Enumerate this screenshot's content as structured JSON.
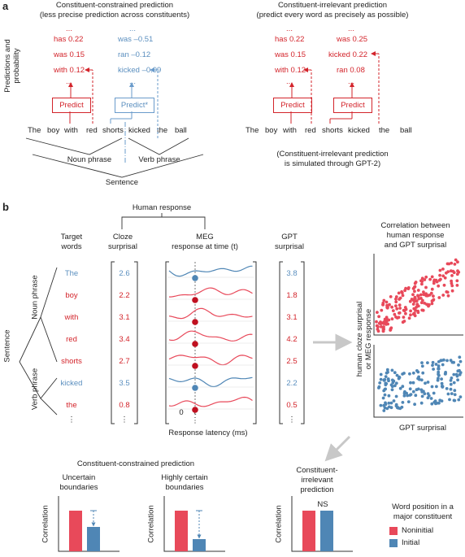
{
  "panel_a": {
    "label": "a",
    "side_label_1": "Predictions and",
    "side_label_2": "probability",
    "left_title_1": "Constituent-constrained prediction",
    "left_title_2": "(less precise prediction across constituents)",
    "right_title_1": "Constituent-irrelevant prediction",
    "right_title_2": "(predict every word as precisely as possible)",
    "ellipsis": "...",
    "left_red": [
      "has 0.22",
      "was 0.15",
      "with 0.12"
    ],
    "left_blue": [
      "was –0.51",
      "ran –0.12",
      "kicked –0.09"
    ],
    "right_col1": [
      "has 0.22",
      "was 0.15",
      "with 0.12"
    ],
    "right_col2": [
      "was 0.25",
      "kicked 0.22",
      "ran 0.08"
    ],
    "predict": "Predict",
    "predict_star": "Predict*",
    "sentence_words": [
      "The",
      "boy",
      "with",
      "red",
      "shorts",
      "kicked",
      "the",
      "ball"
    ],
    "noun_phrase": "Noun phrase",
    "verb_phrase": "Verb phrase",
    "sentence": "Sentence",
    "gpt_note_1": "(Constituent-irrelevant prediction",
    "gpt_note_2": "is simulated through GPT-2)"
  },
  "panel_b": {
    "label": "b",
    "human_response": "Human response",
    "target_words_1": "Target",
    "target_words_2": "words",
    "cloze_1": "Cloze",
    "cloze_2": "surprisal",
    "meg_1": "MEG",
    "meg_2": "response at time (t)",
    "gpt_1": "GPT",
    "gpt_2": "surprisal",
    "words": [
      "The",
      "boy",
      "with",
      "red",
      "shorts",
      "kicked",
      "the",
      "⋮"
    ],
    "cloze": [
      "2.6",
      "2.2",
      "3.1",
      "3.4",
      "2.7",
      "3.5",
      "0.8",
      "⋮"
    ],
    "gpt": [
      "3.8",
      "1.8",
      "3.1",
      "4.2",
      "2.5",
      "2.2",
      "0.5",
      "⋮"
    ],
    "latency_0": "0",
    "latency_t": "t",
    "latency_dots": "⋮",
    "latency_label": "Response latency (ms)",
    "tree_sentence": "Sentence",
    "tree_noun": "Noun phrase",
    "tree_verb": "Verb phrase",
    "corr_title_1": "Correlation between",
    "corr_title_2": "human response",
    "corr_title_3": "and GPT surprisal",
    "corr_ylabel_1": "human cloze surprisal",
    "corr_ylabel_2": "or MEG response",
    "corr_xlabel": "GPT surprisal",
    "constrained_title": "Constituent-constrained prediction",
    "uncertain_1": "Uncertain",
    "uncertain_2": "boundaries",
    "certain_1": "Highly certain",
    "certain_2": "boundaries",
    "irrelevant_1": "Constituent-",
    "irrelevant_2": "irrelevant",
    "irrelevant_3": "prediction",
    "correlation": "Correlation",
    "ns": "NS",
    "legend_title_1": "Word position in a",
    "legend_title_2": "major constituent",
    "legend_noninitial": "Noninitial",
    "legend_initial": "Initial",
    "colors": {
      "noninitial": "#e8495a",
      "initial": "#4f86b5",
      "red_text": "#d3242b",
      "blue_text": "#5b8fbf"
    }
  },
  "chart_data": [
    {
      "type": "bar",
      "title": "Uncertain boundaries",
      "ylabel": "Correlation",
      "categories": [
        "Noninitial",
        "Initial"
      ],
      "values": [
        1.0,
        0.6
      ]
    },
    {
      "type": "bar",
      "title": "Highly certain boundaries",
      "ylabel": "Correlation",
      "categories": [
        "Noninitial",
        "Initial"
      ],
      "values": [
        1.0,
        0.3
      ]
    },
    {
      "type": "bar",
      "title": "Constituent-irrelevant prediction",
      "ylabel": "Correlation",
      "categories": [
        "Noninitial",
        "Initial"
      ],
      "values": [
        1.0,
        1.0
      ],
      "annotation": "NS"
    }
  ]
}
